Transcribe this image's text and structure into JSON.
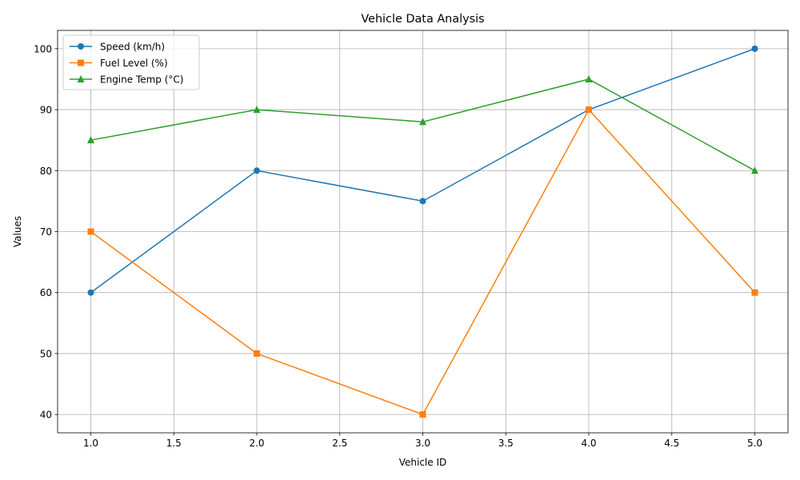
{
  "chart_data": {
    "type": "line",
    "title": "Vehicle Data Analysis",
    "xlabel": "Vehicle ID",
    "ylabel": "Values",
    "x": [
      1,
      2,
      3,
      4,
      5
    ],
    "xlim": [
      0.8,
      5.2
    ],
    "ylim": [
      37,
      103
    ],
    "xticks": [
      1.0,
      1.5,
      2.0,
      2.5,
      3.0,
      3.5,
      4.0,
      4.5,
      5.0
    ],
    "xtick_labels": [
      "1.0",
      "1.5",
      "2.0",
      "2.5",
      "3.0",
      "3.5",
      "4.0",
      "4.5",
      "5.0"
    ],
    "yticks": [
      40,
      50,
      60,
      70,
      80,
      90,
      100
    ],
    "ytick_labels": [
      "40",
      "50",
      "60",
      "70",
      "80",
      "90",
      "100"
    ],
    "grid": true,
    "legend_position": "top-left",
    "series": [
      {
        "name": "Speed (km/h)",
        "values": [
          60,
          80,
          75,
          90,
          100
        ],
        "color": "#1f77b4",
        "marker": "circle"
      },
      {
        "name": "Fuel Level (%)",
        "values": [
          70,
          50,
          40,
          90,
          60
        ],
        "color": "#ff7f0e",
        "marker": "square"
      },
      {
        "name": "Engine Temp (°C)",
        "values": [
          85,
          90,
          88,
          95,
          80
        ],
        "color": "#2ca02c",
        "marker": "triangle"
      }
    ]
  }
}
